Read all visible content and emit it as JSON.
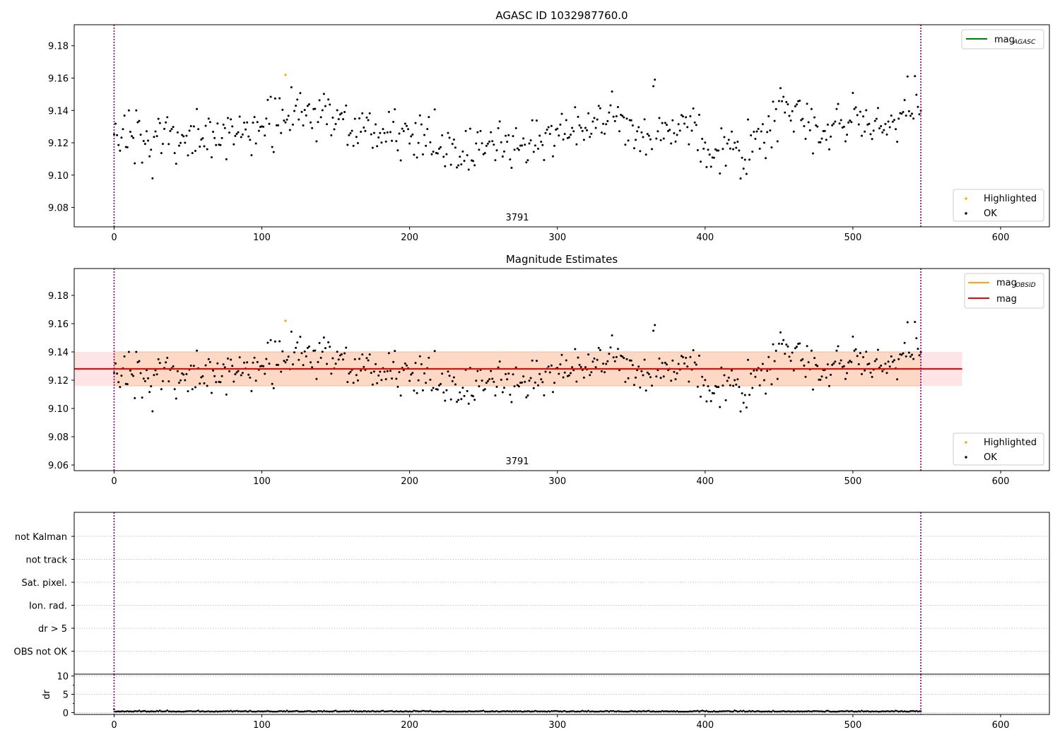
{
  "chart_data": [
    {
      "id": "agasc",
      "type": "scatter",
      "title": "AGASC ID 1032987760.0",
      "obsid_label": "3791",
      "xlim": [
        -27,
        633
      ],
      "ylim": [
        9.068,
        9.193
      ],
      "xticks": [
        0,
        100,
        200,
        300,
        400,
        500,
        600
      ],
      "yticks": [
        9.08,
        9.1,
        9.12,
        9.14,
        9.16,
        9.18
      ],
      "vlines": [
        0,
        546
      ],
      "legend_top": [
        {
          "label": "mag",
          "sub": "AGASC",
          "color": "#008000"
        }
      ],
      "legend_bottom": [
        {
          "label": "Highlighted",
          "color": "#ffa500"
        },
        {
          "label": "OK",
          "color": "#000000"
        }
      ],
      "series_ok": "OK",
      "series_highlight": {
        "name": "Highlighted",
        "points": [
          [
            116,
            9.162
          ]
        ]
      }
    },
    {
      "id": "mag",
      "type": "scatter",
      "title": "Magnitude Estimates",
      "obsid_label": "3791",
      "xlim": [
        -27,
        633
      ],
      "ylim": [
        9.056,
        9.199
      ],
      "xticks": [
        0,
        100,
        200,
        300,
        400,
        500,
        600
      ],
      "yticks": [
        9.06,
        9.08,
        9.1,
        9.12,
        9.14,
        9.16,
        9.18
      ],
      "vlines": [
        0,
        546
      ],
      "mag_line": 9.128,
      "mag_band": [
        9.116,
        9.14
      ],
      "band_x": [
        -27,
        574
      ],
      "inner_band_x": [
        0,
        546
      ],
      "legend_top": [
        {
          "label": "mag",
          "sub": "OBSID",
          "color": "#ffa500"
        },
        {
          "label": "mag",
          "sub": "",
          "color": "#ff0000"
        }
      ],
      "legend_bottom": [
        {
          "label": "Highlighted",
          "color": "#ffa500"
        },
        {
          "label": "OK",
          "color": "#000000"
        }
      ],
      "series_highlight": {
        "name": "Highlighted",
        "points": [
          [
            116,
            9.162
          ]
        ]
      }
    },
    {
      "id": "flags",
      "type": "scatter",
      "xlim": [
        -27,
        633
      ],
      "categories": [
        "not Kalman",
        "not track",
        "Sat. pixel.",
        "Ion. rad.",
        "dr > 5",
        "OBS not OK"
      ],
      "vlines": [
        0,
        546
      ]
    },
    {
      "id": "dr",
      "type": "scatter",
      "ylabel": "dr",
      "xlim": [
        -27,
        633
      ],
      "ylim": [
        -0.5,
        10.5
      ],
      "xticks": [
        0,
        100,
        200,
        300,
        400,
        500,
        600
      ],
      "yticks": [
        0,
        5,
        10
      ],
      "vlines": [
        0,
        546
      ]
    }
  ],
  "colors": {
    "ok": "#000000",
    "highlight": "#ffa500",
    "vline": "#800080",
    "mag_line": "#ff0000",
    "band_outer": "#ffe4e6",
    "band_inner": "#fdd8c4",
    "grid": "#b0b0b0"
  }
}
